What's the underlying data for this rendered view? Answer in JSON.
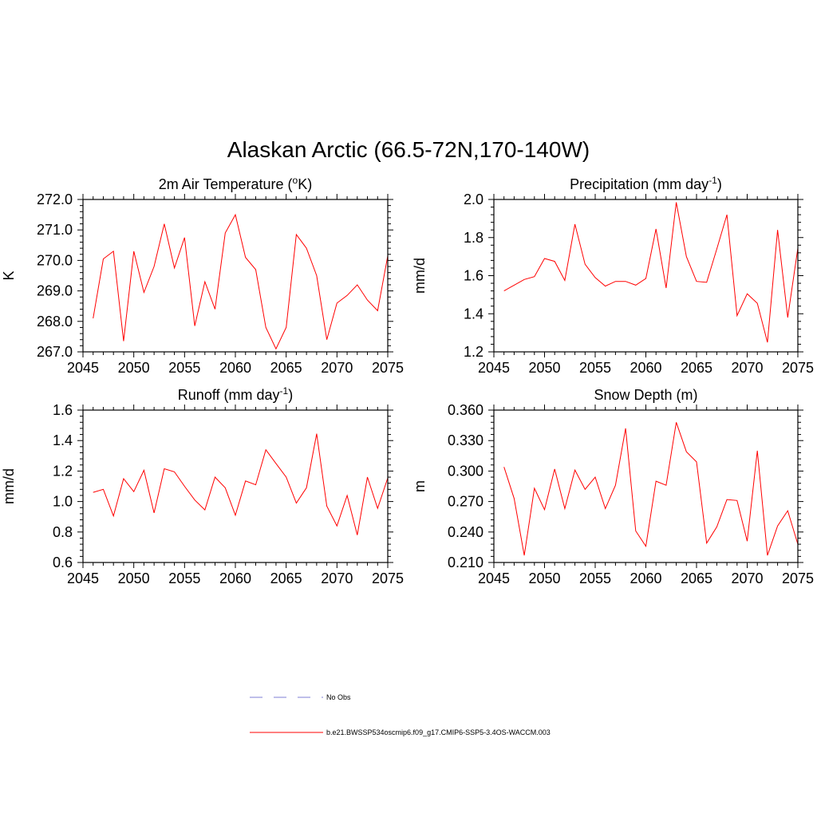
{
  "figure": {
    "title": "Alaskan Arctic (66.5-72N,170-140W)"
  },
  "legend": {
    "entries": [
      {
        "label": "No Obs",
        "color": "#9999dd",
        "dash": true
      },
      {
        "label": "b.e21.BWSSP534oscmip6.f09_g17.CMIP6-SSP5-3.4OS-WACCM.003",
        "color": "#ff0000",
        "dash": false
      }
    ]
  },
  "chart_data": [
    {
      "type": "line",
      "title": {
        "main": "2m Air Temperature (",
        "sup": "o",
        "tail": "K)"
      },
      "ylabel": "K",
      "xlim": [
        2045,
        2075
      ],
      "ylim": [
        267.0,
        272.0
      ],
      "x_ticks": [
        "2045",
        "2050",
        "2055",
        "2060",
        "2065",
        "2070",
        "2075"
      ],
      "y_ticks": [
        "267.0",
        "268.0",
        "269.0",
        "270.0",
        "271.0",
        "272.0"
      ],
      "line_color": "#ff0000",
      "x": [
        2046,
        2047,
        2048,
        2049,
        2050,
        2051,
        2052,
        2053,
        2054,
        2055,
        2056,
        2057,
        2058,
        2059,
        2060,
        2061,
        2062,
        2063,
        2064,
        2065,
        2066,
        2067,
        2068,
        2069,
        2070,
        2071,
        2072,
        2073,
        2074,
        2075
      ],
      "values": [
        268.1,
        270.05,
        270.3,
        267.35,
        270.3,
        268.95,
        269.8,
        271.2,
        269.75,
        270.75,
        267.85,
        269.3,
        268.4,
        270.9,
        271.5,
        270.1,
        269.7,
        267.8,
        267.1,
        267.8,
        270.85,
        270.4,
        269.5,
        267.4,
        268.6,
        268.85,
        269.2,
        268.7,
        268.35,
        270.15
      ]
    },
    {
      "type": "line",
      "title": {
        "main": "Precipitation (mm day",
        "sup": "-1",
        "tail": ")"
      },
      "ylabel": "mm/d",
      "xlim": [
        2045,
        2075
      ],
      "ylim": [
        1.2,
        2.0
      ],
      "x_ticks": [
        "2045",
        "2050",
        "2055",
        "2060",
        "2065",
        "2070",
        "2075"
      ],
      "y_ticks": [
        "1.2",
        "1.4",
        "1.6",
        "1.8",
        "2.0"
      ],
      "line_color": "#ff0000",
      "x": [
        2046,
        2047,
        2048,
        2049,
        2050,
        2051,
        2052,
        2053,
        2054,
        2055,
        2056,
        2057,
        2058,
        2059,
        2060,
        2061,
        2062,
        2063,
        2064,
        2065,
        2066,
        2067,
        2068,
        2069,
        2070,
        2071,
        2072,
        2073,
        2074,
        2075
      ],
      "values": [
        1.52,
        1.55,
        1.58,
        1.595,
        1.69,
        1.675,
        1.575,
        1.87,
        1.66,
        1.59,
        1.545,
        1.57,
        1.57,
        1.55,
        1.585,
        1.845,
        1.535,
        1.985,
        1.7,
        1.57,
        1.565,
        1.74,
        1.92,
        1.39,
        1.505,
        1.455,
        1.25,
        1.84,
        1.38,
        1.745
      ]
    },
    {
      "type": "line",
      "title": {
        "main": "Runoff (mm day",
        "sup": "-1",
        "tail": ")"
      },
      "ylabel": "mm/d",
      "xlim": [
        2045,
        2075
      ],
      "ylim": [
        0.6,
        1.6
      ],
      "x_ticks": [
        "2045",
        "2050",
        "2055",
        "2060",
        "2065",
        "2070",
        "2075"
      ],
      "y_ticks": [
        "0.6",
        "0.8",
        "1.0",
        "1.2",
        "1.4",
        "1.6"
      ],
      "line_color": "#ff0000",
      "x": [
        2046,
        2047,
        2048,
        2049,
        2050,
        2051,
        2052,
        2053,
        2054,
        2055,
        2056,
        2057,
        2058,
        2059,
        2060,
        2061,
        2062,
        2063,
        2064,
        2065,
        2066,
        2067,
        2068,
        2069,
        2070,
        2071,
        2072,
        2073,
        2074,
        2075
      ],
      "values": [
        1.06,
        1.08,
        0.905,
        1.15,
        1.065,
        1.205,
        0.925,
        1.215,
        1.195,
        1.1,
        1.01,
        0.945,
        1.16,
        1.09,
        0.91,
        1.135,
        1.11,
        1.34,
        1.25,
        1.16,
        0.99,
        1.09,
        1.445,
        0.97,
        0.84,
        1.04,
        0.78,
        1.16,
        0.955,
        1.155
      ]
    },
    {
      "type": "line",
      "title": {
        "main": "Snow Depth (m)",
        "sup": "",
        "tail": ""
      },
      "ylabel": "m",
      "xlim": [
        2045,
        2075
      ],
      "ylim": [
        0.21,
        0.36
      ],
      "x_ticks": [
        "2045",
        "2050",
        "2055",
        "2060",
        "2065",
        "2070",
        "2075"
      ],
      "y_ticks": [
        "0.210",
        "0.240",
        "0.270",
        "0.300",
        "0.330",
        "0.360"
      ],
      "line_color": "#ff0000",
      "x": [
        2046,
        2047,
        2048,
        2049,
        2050,
        2051,
        2052,
        2053,
        2054,
        2055,
        2056,
        2057,
        2058,
        2059,
        2060,
        2061,
        2062,
        2063,
        2064,
        2065,
        2066,
        2067,
        2068,
        2069,
        2070,
        2071,
        2072,
        2073,
        2074,
        2075
      ],
      "values": [
        0.304,
        0.273,
        0.217,
        0.283,
        0.262,
        0.302,
        0.263,
        0.301,
        0.282,
        0.294,
        0.263,
        0.286,
        0.342,
        0.241,
        0.226,
        0.29,
        0.286,
        0.348,
        0.319,
        0.309,
        0.229,
        0.245,
        0.272,
        0.271,
        0.231,
        0.32,
        0.217,
        0.246,
        0.261,
        0.228
      ]
    }
  ]
}
